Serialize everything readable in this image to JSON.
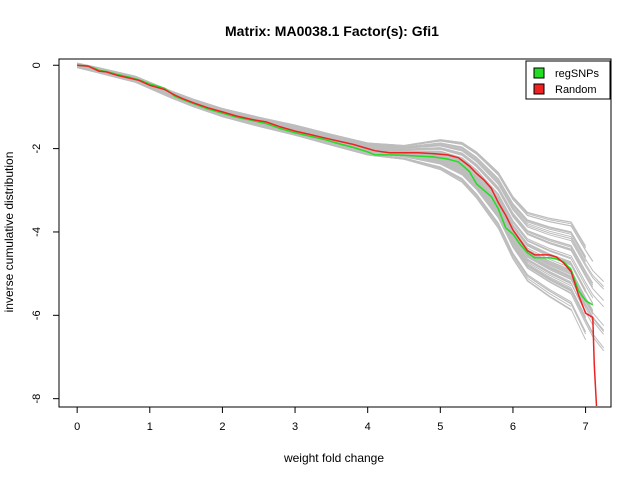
{
  "chart_data": {
    "type": "line",
    "title": "Matrix: MA0038.1 Factor(s): Gfi1",
    "xlabel": "weight fold change",
    "ylabel": "inverse cumulative distribution",
    "xlim": [
      -0.25,
      7.35
    ],
    "ylim": [
      -8.2,
      0.15
    ],
    "x_ticks": [
      0,
      1,
      2,
      3,
      4,
      5,
      6,
      7
    ],
    "y_ticks": [
      0,
      -2,
      -4,
      -6,
      -8
    ],
    "grid": false,
    "legend_position": "top-right",
    "colors": {
      "regSNPs": "#22dd22",
      "Random": "#ee2222",
      "background_runs": "#bdbdbd",
      "axis": "#000000"
    },
    "legend": [
      {
        "label": "regSNPs",
        "color": "#22dd22"
      },
      {
        "label": "Random",
        "color": "#ee2222"
      }
    ],
    "series": [
      {
        "name": "regSNPs",
        "color": "#22dd22",
        "x": [
          0,
          0.15,
          0.25,
          0.3,
          0.4,
          0.55,
          0.7,
          0.85,
          1.0,
          1.2,
          1.35,
          1.45,
          1.6,
          1.8,
          2.0,
          2.2,
          2.4,
          2.6,
          2.8,
          3.0,
          3.2,
          3.4,
          3.6,
          3.8,
          4.0,
          4.1,
          4.3,
          4.5,
          4.7,
          4.9,
          5.1,
          5.25,
          5.4,
          5.5,
          5.6,
          5.7,
          5.8,
          5.9,
          6.0,
          6.1,
          6.2,
          6.3,
          6.4,
          6.5,
          6.6,
          6.7,
          6.8,
          6.9,
          7.0,
          7.1
        ],
        "y": [
          0,
          -0.02,
          -0.08,
          -0.12,
          -0.15,
          -0.22,
          -0.28,
          -0.35,
          -0.45,
          -0.55,
          -0.75,
          -0.82,
          -0.92,
          -1.05,
          -1.15,
          -1.25,
          -1.32,
          -1.4,
          -1.52,
          -1.62,
          -1.7,
          -1.78,
          -1.88,
          -1.97,
          -2.08,
          -2.15,
          -2.15,
          -2.16,
          -2.18,
          -2.2,
          -2.25,
          -2.32,
          -2.55,
          -2.85,
          -3.0,
          -3.15,
          -3.45,
          -3.9,
          -4.05,
          -4.3,
          -4.5,
          -4.62,
          -4.62,
          -4.62,
          -4.65,
          -4.72,
          -4.9,
          -5.4,
          -5.65,
          -5.75
        ]
      },
      {
        "name": "Random",
        "color": "#ee2222",
        "x": [
          0,
          0.15,
          0.25,
          0.3,
          0.4,
          0.55,
          0.7,
          0.85,
          1.0,
          1.2,
          1.35,
          1.45,
          1.6,
          1.8,
          2.0,
          2.2,
          2.4,
          2.6,
          2.8,
          3.0,
          3.2,
          3.4,
          3.6,
          3.8,
          4.0,
          4.1,
          4.3,
          4.5,
          4.7,
          4.9,
          5.1,
          5.25,
          5.4,
          5.5,
          5.6,
          5.7,
          5.8,
          5.9,
          6.0,
          6.1,
          6.2,
          6.3,
          6.4,
          6.5,
          6.6,
          6.7,
          6.8,
          6.9,
          7.0,
          7.1,
          7.12,
          7.15
        ],
        "y": [
          0,
          -0.02,
          -0.1,
          -0.14,
          -0.16,
          -0.24,
          -0.3,
          -0.36,
          -0.48,
          -0.58,
          -0.72,
          -0.8,
          -0.9,
          -1.02,
          -1.12,
          -1.22,
          -1.3,
          -1.36,
          -1.48,
          -1.58,
          -1.66,
          -1.74,
          -1.82,
          -1.9,
          -2.0,
          -2.05,
          -2.1,
          -2.1,
          -2.1,
          -2.12,
          -2.15,
          -2.22,
          -2.42,
          -2.6,
          -2.75,
          -2.95,
          -3.3,
          -3.6,
          -3.95,
          -4.2,
          -4.45,
          -4.55,
          -4.55,
          -4.55,
          -4.6,
          -4.75,
          -4.95,
          -5.5,
          -5.95,
          -6.05,
          -7.2,
          -8.2
        ]
      }
    ],
    "background_runs_profile": {
      "x": [
        0,
        0.3,
        0.8,
        1.3,
        1.6,
        2.0,
        2.5,
        3.0,
        3.5,
        4.0,
        4.5,
        5.0,
        5.3,
        5.5,
        5.8,
        6.0,
        6.2,
        6.5,
        6.8,
        7.0,
        7.1,
        7.25,
        7.35
      ],
      "y": [
        0,
        -0.12,
        -0.33,
        -0.7,
        -0.9,
        -1.13,
        -1.35,
        -1.55,
        -1.78,
        -2.0,
        -2.08,
        -2.12,
        -2.3,
        -2.6,
        -3.2,
        -3.85,
        -4.3,
        -4.55,
        -4.75,
        -5.4,
        -5.7,
        -6.0,
        -6.0
      ]
    }
  }
}
